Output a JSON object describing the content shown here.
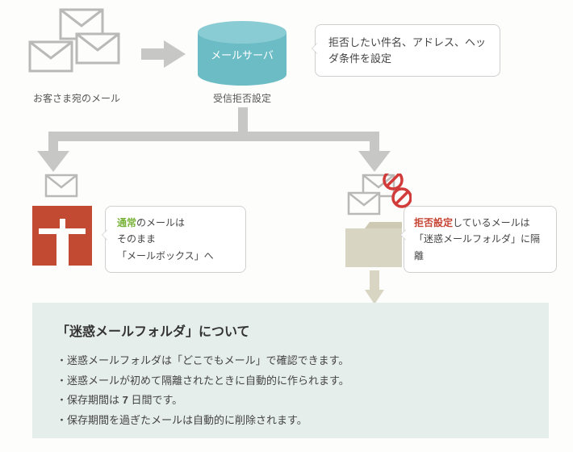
{
  "colors": {
    "cylinder": "#6cbcc6",
    "arrow": "#c7c7c5",
    "envelope_stroke": "#b9b9b7",
    "envelope_fill": "#fdfdfb",
    "mailbox": "#c24a33",
    "folder": "#d8d5c3",
    "prohibit": "#d13b3a",
    "info_bg": "#e6eeec",
    "text": "#444444",
    "green": "#7ab33a",
    "red": "#c74433"
  },
  "top": {
    "caption_left": "お客さま宛のメール",
    "server_label": "メールサーバ",
    "caption_server": "受信拒否設定",
    "bubble": "拒否したい件名、アドレス、ヘッダ条件を設定"
  },
  "left_branch": {
    "highlight": "通常",
    "line1_rest": "のメールは",
    "line2": "そのまま",
    "line3": "「メールボックス」へ"
  },
  "right_branch": {
    "highlight": "拒否設定",
    "line1_rest": "しているメールは",
    "line2": "「迷惑メールフォルダ」に隔離"
  },
  "info": {
    "title": "「迷惑メールフォルダ」について",
    "items": [
      "迷惑メールフォルダは「どこでもメール」で確認できます。",
      "迷惑メールが初めて隔離されたときに自動的に作られます。",
      "保存期間は <b>7</b> 日間です。",
      "保存期間を過ぎたメールは自動的に削除されます。"
    ]
  }
}
